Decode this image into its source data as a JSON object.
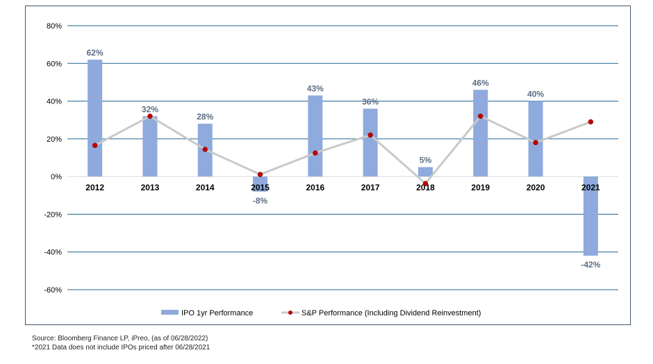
{
  "chart_data": {
    "type": "bar",
    "categories": [
      "2012",
      "2013",
      "2014",
      "2015",
      "2016",
      "2017",
      "2018",
      "2019",
      "2020",
      "2021"
    ],
    "series": [
      {
        "name": "IPO 1yr Performance",
        "type": "bar",
        "color": "#8faadc",
        "values": [
          62,
          32,
          28,
          -8,
          43,
          36,
          5,
          46,
          40,
          -42
        ],
        "data_labels": [
          "62%",
          "32%",
          "28%",
          "-8%",
          "43%",
          "36%",
          "5%",
          "46%",
          "40%",
          "-42%"
        ]
      },
      {
        "name": "S&P Performance (Including Dividend Reinvestment)",
        "type": "line",
        "color": "#c9c9c9",
        "marker_color": "#c00000",
        "values": [
          16.5,
          32,
          14.4,
          1.1,
          12.5,
          22,
          -3.7,
          32,
          18,
          29
        ]
      }
    ],
    "ylim": [
      -60,
      80
    ],
    "yticks": [
      -60,
      -40,
      -20,
      0,
      20,
      40,
      60,
      80
    ],
    "ytick_labels": [
      "-60%",
      "-40%",
      "-20%",
      "0%",
      "20%",
      "40%",
      "60%",
      "80%"
    ],
    "grid": true,
    "grid_color": "#1f6391",
    "legend": "bottom-center",
    "title": "",
    "xlabel": "",
    "ylabel": ""
  },
  "footnotes": {
    "source": "Source: Bloomberg Finance LP,  iPreo, (as of 06/28/2022)",
    "note": "*2021 Data does not include IPOs  priced after 06/28/2021"
  }
}
